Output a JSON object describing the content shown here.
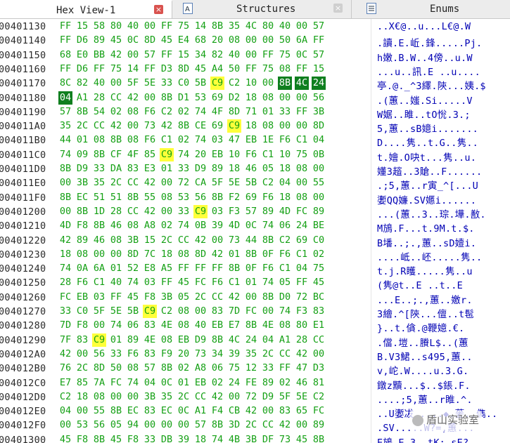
{
  "tabs": [
    {
      "label": "Hex View-1",
      "active": true,
      "close": "×"
    },
    {
      "label": "Structures",
      "active": false,
      "close": "×"
    },
    {
      "label": "Enums",
      "active": false
    }
  ],
  "watermark": {
    "text": "盾山实验室"
  },
  "colors": {
    "hex_byte": "#14a014",
    "ascii": "#0000b4",
    "highlight_yellow": "#ffff3a",
    "highlight_green": "#0f7f1f"
  },
  "rows": [
    {
      "addr": "00401130",
      "bytes": [
        "FF",
        "15",
        "58",
        "80",
        "40",
        "00",
        "FF",
        "75",
        "14",
        "8B",
        "35",
        "4C",
        "80",
        "40",
        "00",
        "57"
      ],
      "ascii": "..X€@..u...L€@.W"
    },
    {
      "addr": "00401140",
      "bytes": [
        "FF",
        "D6",
        "89",
        "45",
        "0C",
        "8D",
        "45",
        "E4",
        "68",
        "20",
        "08",
        "00",
        "00",
        "50",
        "6A",
        "FF"
      ],
      "ascii": ".讀.E.岴.鋒.....Pj."
    },
    {
      "addr": "00401150",
      "bytes": [
        "68",
        "E0",
        "BB",
        "42",
        "00",
        "57",
        "FF",
        "15",
        "34",
        "82",
        "40",
        "00",
        "FF",
        "75",
        "0C",
        "57"
      ],
      "ascii": "h嫩.B.W..4傍..u.W"
    },
    {
      "addr": "00401160",
      "bytes": [
        "FF",
        "D6",
        "FF",
        "75",
        "14",
        "FF",
        "D3",
        "8D",
        "45",
        "A4",
        "50",
        "FF",
        "75",
        "08",
        "FF",
        "15"
      ],
      "ascii": "...u..訊.E ..u...."
    },
    {
      "addr": "00401170",
      "bytes": [
        "8C",
        "82",
        "40",
        "00",
        "5F",
        "5E",
        "33",
        "C0",
        "5B",
        "C9",
        "C2",
        "10",
        "00",
        "8B",
        "4C",
        "24"
      ],
      "ascii": "亭.@._^3繹.陝...姨.$",
      "hl": {
        "9": "y",
        "13": "g",
        "14": "g",
        "15": "g"
      }
    },
    {
      "addr": "00401180",
      "bytes": [
        "04",
        "A1",
        "28",
        "CC",
        "42",
        "00",
        "8B",
        "D1",
        "53",
        "69",
        "D2",
        "18",
        "08",
        "00",
        "00",
        "56"
      ],
      "ascii": ".(蕙..媸.Si.....V",
      "hl": {
        "0": "g"
      }
    },
    {
      "addr": "00401190",
      "bytes": [
        "57",
        "8B",
        "54",
        "02",
        "08",
        "F6",
        "C2",
        "02",
        "74",
        "4F",
        "8D",
        "71",
        "01",
        "33",
        "FF",
        "3B"
      ],
      "ascii": "W婮..雎..tO恱.3.;"
    },
    {
      "addr": "004011A0",
      "bytes": [
        "35",
        "2C",
        "CC",
        "42",
        "00",
        "73",
        "42",
        "8B",
        "CE",
        "69",
        "C9",
        "18",
        "08",
        "00",
        "00",
        "8D"
      ],
      "ascii": "5,蕙..sB嬑i.......",
      "hl": {
        "10": "y"
      }
    },
    {
      "addr": "004011B0",
      "bytes": [
        "44",
        "01",
        "08",
        "8B",
        "08",
        "F6",
        "C1",
        "02",
        "74",
        "03",
        "47",
        "EB",
        "1E",
        "F6",
        "C1",
        "04"
      ],
      "ascii": "D....隽..t.G..隽.."
    },
    {
      "addr": "004011C0",
      "bytes": [
        "74",
        "09",
        "8B",
        "CF",
        "4F",
        "85",
        "C9",
        "74",
        "20",
        "EB",
        "10",
        "F6",
        "C1",
        "10",
        "75",
        "0B"
      ],
      "ascii": "t.嬒.O吷t...隽..u.",
      "hl": {
        "6": "y"
      }
    },
    {
      "addr": "004011D0",
      "bytes": [
        "8B",
        "D9",
        "33",
        "DA",
        "83",
        "E3",
        "01",
        "33",
        "D9",
        "89",
        "18",
        "46",
        "05",
        "18",
        "08",
        "00"
      ],
      "ascii": "嬞3趦..3賶..F......"
    },
    {
      "addr": "004011E0",
      "bytes": [
        "00",
        "3B",
        "35",
        "2C",
        "CC",
        "42",
        "00",
        "72",
        "CA",
        "5F",
        "5E",
        "5B",
        "C2",
        "04",
        "00",
        "55"
      ],
      "ascii": ".;5,蕙..r寅_^[...U"
    },
    {
      "addr": "004011F0",
      "bytes": [
        "8B",
        "EC",
        "51",
        "51",
        "8B",
        "55",
        "08",
        "53",
        "56",
        "8B",
        "F2",
        "69",
        "F6",
        "18",
        "08",
        "00"
      ],
      "ascii": "嬱QQ嬚.SV嬺i......"
    },
    {
      "addr": "00401200",
      "bytes": [
        "00",
        "8B",
        "1D",
        "28",
        "CC",
        "42",
        "00",
        "33",
        "C9",
        "03",
        "F3",
        "57",
        "89",
        "4D",
        "FC",
        "89"
      ],
      "ascii": "...(蕙..3..琮.墷.敾.",
      "hl": {
        "8": "y"
      }
    },
    {
      "addr": "00401210",
      "bytes": [
        "4D",
        "F8",
        "8B",
        "46",
        "08",
        "A8",
        "02",
        "74",
        "0B",
        "39",
        "4D",
        "0C",
        "74",
        "06",
        "24",
        "BE"
      ],
      "ascii": "M鴋.F...t.9M.t.$."
    },
    {
      "addr": "00401220",
      "bytes": [
        "42",
        "89",
        "46",
        "08",
        "3B",
        "15",
        "2C",
        "CC",
        "42",
        "00",
        "73",
        "44",
        "8B",
        "C2",
        "69",
        "C0"
      ],
      "ascii": "B墦..;.,蕙..sD嬄i."
    },
    {
      "addr": "00401230",
      "bytes": [
        "18",
        "08",
        "00",
        "00",
        "8D",
        "7C",
        "18",
        "08",
        "8D",
        "42",
        "01",
        "8B",
        "0F",
        "F6",
        "C1",
        "02"
      ],
      "ascii": "....岻..岯.....隽.."
    },
    {
      "addr": "00401240",
      "bytes": [
        "74",
        "0A",
        "6A",
        "01",
        "52",
        "E8",
        "A5",
        "FF",
        "FF",
        "FF",
        "8B",
        "0F",
        "F6",
        "C1",
        "04",
        "75"
      ],
      "ascii": "t.j.R矆.....隽..u"
    },
    {
      "addr": "00401250",
      "bytes": [
        "28",
        "F6",
        "C1",
        "40",
        "74",
        "03",
        "FF",
        "45",
        "FC",
        "F6",
        "C1",
        "01",
        "74",
        "05",
        "FF",
        "45"
      ],
      "ascii": "(隽@t..E ..t..E"
    },
    {
      "addr": "00401260",
      "bytes": [
        "FC",
        "EB",
        "03",
        "FF",
        "45",
        "F8",
        "3B",
        "05",
        "2C",
        "CC",
        "42",
        "00",
        "8B",
        "D0",
        "72",
        "BC"
      ],
      "ascii": "...E..;.,蕙..嬓r."
    },
    {
      "addr": "00401270",
      "bytes": [
        "33",
        "C0",
        "5F",
        "5E",
        "5B",
        "C9",
        "C2",
        "08",
        "00",
        "83",
        "7D",
        "FC",
        "00",
        "74",
        "F3",
        "83"
      ],
      "ascii": "3繪.^[陝...儃..t髢",
      "hl": {
        "5": "y"
      }
    },
    {
      "addr": "00401280",
      "bytes": [
        "7D",
        "F8",
        "00",
        "74",
        "06",
        "83",
        "4E",
        "08",
        "40",
        "EB",
        "E7",
        "8B",
        "4E",
        "08",
        "80",
        "E1"
      ],
      "ascii": "}..t.僋.@鞭嬑.€."
    },
    {
      "addr": "00401290",
      "bytes": [
        "7F",
        "83",
        "C9",
        "01",
        "89",
        "4E",
        "08",
        "EB",
        "D9",
        "8B",
        "4C",
        "24",
        "04",
        "A1",
        "28",
        "CC"
      ],
      "ascii": ".儅.塏..賸L$..(蕙",
      "hl": {
        "2": "y"
      }
    },
    {
      "addr": "004012A0",
      "bytes": [
        "42",
        "00",
        "56",
        "33",
        "F6",
        "83",
        "F9",
        "20",
        "73",
        "34",
        "39",
        "35",
        "2C",
        "CC",
        "42",
        "00"
      ],
      "ascii": "B.V3鮶..s495,蕙.."
    },
    {
      "addr": "004012B0",
      "bytes": [
        "76",
        "2C",
        "8D",
        "50",
        "08",
        "57",
        "8B",
        "02",
        "A8",
        "06",
        "75",
        "12",
        "33",
        "FF",
        "47",
        "D3"
      ],
      "ascii": "v,岮.W....u.3.G."
    },
    {
      "addr": "004012C0",
      "bytes": [
        "E7",
        "85",
        "7A",
        "FC",
        "74",
        "04",
        "0C",
        "01",
        "EB",
        "02",
        "24",
        "FE",
        "89",
        "02",
        "46",
        "81"
      ],
      "ascii": "鐓z黷...$..$鋹.F."
    },
    {
      "addr": "004012D0",
      "bytes": [
        "C2",
        "18",
        "08",
        "00",
        "00",
        "3B",
        "35",
        "2C",
        "CC",
        "42",
        "00",
        "72",
        "D9",
        "5F",
        "5E",
        "C2"
      ],
      "ascii": "....;5,蕙..r睢.^."
    },
    {
      "addr": "004012E0",
      "bytes": [
        "04",
        "00",
        "55",
        "8B",
        "EC",
        "83",
        "EC",
        "0C",
        "A1",
        "F4",
        "CB",
        "42",
        "00",
        "83",
        "65",
        "FC"
      ],
      "ascii": "..U嬱冹.....◆.蓌..儁.."
    },
    {
      "addr": "004012F0",
      "bytes": [
        "00",
        "53",
        "56",
        "05",
        "94",
        "00",
        "00",
        "00",
        "57",
        "8B",
        "3D",
        "2C",
        "CC",
        "42",
        "00",
        "89"
      ],
      "ascii": ".SV.....W?=,蕙..."
    },
    {
      "addr": "00401300",
      "bytes": [
        "45",
        "F8",
        "8B",
        "45",
        "F8",
        "33",
        "DB",
        "39",
        "18",
        "74",
        "4B",
        "3B",
        "DF",
        "73",
        "45",
        "8B"
      ],
      "ascii": "E鴋.E.3..tK;.sE?"
    }
  ]
}
